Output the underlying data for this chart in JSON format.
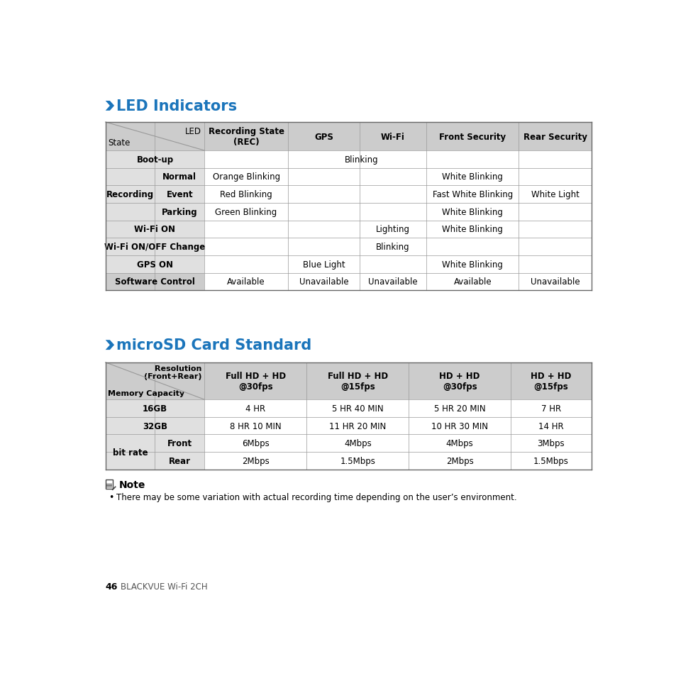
{
  "title1": "LED Indicators",
  "title2": "microSD Card Standard",
  "accent_color": "#1B75BB",
  "header_bg": "#CCCCCC",
  "subheader_bg": "#E0E0E0",
  "white_bg": "#FFFFFF",
  "border_color": "#999999",
  "text_color": "#000000",
  "page_bg": "#FFFFFF",
  "note_text": "There may be some variation with actual recording time depending on the user’s environment.",
  "footer_page": "46",
  "footer_brand": "BLACKVUE Wi-Fi 2CH"
}
